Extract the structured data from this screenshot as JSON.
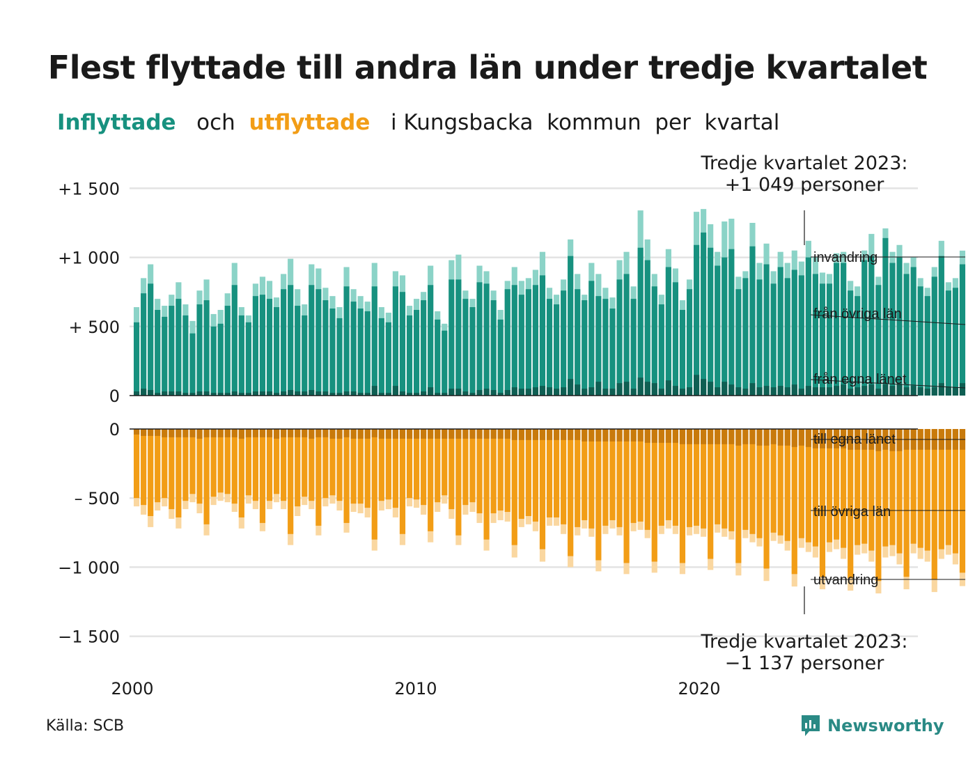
{
  "title": "Flest flyttade till andra län under tredje kvartalet",
  "subtitle": {
    "in_word": "Inflyttade",
    "mid_word": "och",
    "out_word": "utflyttade",
    "rest": "i Kungsbacka  kommun  per  kvartal"
  },
  "source": "Källa: SCB",
  "brand": "Newsworthy",
  "colors": {
    "in_main": "#17917f",
    "in_dark": "#0f5f53",
    "in_light": "#8bd3c7",
    "out_main": "#f29d16",
    "out_dark": "#c87a0c",
    "out_light": "#fad7a0",
    "grid": "#e3e3e3",
    "brand": "#2a8a85"
  },
  "chart_data": {
    "type": "bar",
    "stacked": true,
    "diverging": true,
    "x_start": "2000Q1",
    "x_end": "2023Q3",
    "x_ticks": [
      "2000",
      "2010",
      "2020"
    ],
    "top_ticks": [
      "+1 500",
      "+1 000",
      "+  500",
      "0"
    ],
    "top_tick_values": [
      1500,
      1000,
      500,
      0
    ],
    "bottom_ticks": [
      "0",
      "–  500",
      "−1 000",
      "−1 500"
    ],
    "bottom_tick_values": [
      0,
      -500,
      -1000,
      -1500
    ],
    "top_ylim": [
      0,
      1500
    ],
    "bottom_ylim": [
      -1500,
      0
    ],
    "grid": true,
    "annotation_top": [
      "Tredje kvartalet 2023:",
      "+1 049 personer"
    ],
    "annotation_bottom": [
      "Tredje kvartalet 2023:",
      "−1 137 personer"
    ],
    "in_labels": [
      "invandring",
      "från övriga län",
      "från egna länet"
    ],
    "out_labels": [
      "till egna länet",
      "till övriga län",
      "utvandring"
    ],
    "inflow_total": [
      640,
      850,
      950,
      700,
      650,
      730,
      820,
      660,
      540,
      760,
      840,
      590,
      620,
      740,
      960,
      640,
      580,
      810,
      860,
      830,
      710,
      880,
      990,
      770,
      660,
      950,
      920,
      780,
      720,
      640,
      930,
      770,
      720,
      680,
      960,
      640,
      600,
      900,
      870,
      650,
      700,
      750,
      940,
      610,
      520,
      980,
      1020,
      760,
      700,
      940,
      900,
      760,
      620,
      830,
      930,
      830,
      850,
      910,
      1040,
      780,
      730,
      840,
      1130,
      880,
      730,
      960,
      880,
      780,
      710,
      980,
      1040,
      790,
      1340,
      1130,
      880,
      730,
      1060,
      920,
      690,
      840,
      1330,
      1350,
      1240,
      1040,
      1260,
      1280,
      860,
      900,
      1250,
      960,
      1100,
      900,
      1040,
      960,
      1050,
      970,
      1120,
      1000,
      890,
      880,
      1030,
      1040,
      830,
      790,
      1050,
      1170,
      860,
      1210,
      1040,
      1090,
      960,
      1000,
      850,
      780,
      930,
      1120,
      820,
      850,
      1049
    ],
    "inflow_other_county": [
      530,
      740,
      810,
      620,
      570,
      650,
      700,
      580,
      450,
      660,
      690,
      500,
      520,
      650,
      800,
      580,
      530,
      720,
      730,
      700,
      640,
      770,
      800,
      650,
      580,
      800,
      770,
      690,
      630,
      560,
      790,
      680,
      630,
      610,
      790,
      560,
      530,
      790,
      750,
      580,
      620,
      690,
      800,
      550,
      470,
      840,
      840,
      700,
      640,
      820,
      810,
      690,
      550,
      770,
      800,
      730,
      770,
      800,
      870,
      700,
      660,
      760,
      1010,
      770,
      690,
      830,
      720,
      700,
      630,
      840,
      880,
      700,
      1070,
      980,
      790,
      660,
      930,
      820,
      620,
      770,
      1090,
      1180,
      1070,
      940,
      1000,
      1060,
      770,
      850,
      1080,
      840,
      950,
      810,
      930,
      850,
      910,
      870,
      1000,
      880,
      810,
      810,
      960,
      960,
      760,
      720,
      980,
      1010,
      800,
      1140,
      960,
      1000,
      880,
      930,
      790,
      720,
      860,
      1010,
      760,
      780,
      950
    ],
    "inflow_own_county": [
      30,
      50,
      40,
      20,
      30,
      30,
      30,
      20,
      20,
      30,
      30,
      20,
      20,
      20,
      30,
      20,
      20,
      30,
      30,
      30,
      20,
      30,
      40,
      30,
      30,
      40,
      30,
      30,
      20,
      20,
      30,
      30,
      20,
      20,
      70,
      20,
      20,
      70,
      30,
      20,
      20,
      30,
      60,
      20,
      20,
      50,
      50,
      30,
      20,
      40,
      50,
      40,
      20,
      40,
      60,
      50,
      50,
      60,
      70,
      60,
      50,
      60,
      120,
      80,
      50,
      60,
      100,
      50,
      50,
      90,
      100,
      50,
      130,
      100,
      90,
      50,
      110,
      70,
      50,
      60,
      150,
      120,
      100,
      60,
      100,
      80,
      60,
      50,
      90,
      60,
      70,
      60,
      70,
      60,
      80,
      50,
      70,
      60,
      60,
      60,
      70,
      80,
      50,
      60,
      70,
      80,
      50,
      80,
      70,
      80,
      60,
      70,
      60,
      50,
      60,
      90,
      60,
      60,
      90
    ],
    "outflow_total": [
      -560,
      -620,
      -710,
      -590,
      -560,
      -650,
      -720,
      -580,
      -530,
      -610,
      -770,
      -550,
      -520,
      -530,
      -600,
      -720,
      -540,
      -580,
      -740,
      -580,
      -530,
      -580,
      -840,
      -630,
      -550,
      -580,
      -770,
      -560,
      -540,
      -590,
      -750,
      -600,
      -610,
      -640,
      -880,
      -590,
      -580,
      -640,
      -840,
      -560,
      -570,
      -620,
      -820,
      -600,
      -540,
      -650,
      -840,
      -620,
      -600,
      -680,
      -880,
      -680,
      -660,
      -670,
      -930,
      -710,
      -690,
      -740,
      -960,
      -700,
      -700,
      -760,
      -1000,
      -770,
      -720,
      -780,
      -1030,
      -760,
      -720,
      -770,
      -1050,
      -740,
      -730,
      -790,
      -1040,
      -760,
      -720,
      -760,
      -1050,
      -770,
      -760,
      -780,
      -1020,
      -750,
      -780,
      -800,
      -1060,
      -790,
      -820,
      -850,
      -1100,
      -810,
      -830,
      -880,
      -1140,
      -860,
      -890,
      -930,
      -1160,
      -890,
      -870,
      -940,
      -1170,
      -910,
      -900,
      -960,
      -1190,
      -930,
      -920,
      -980,
      -1160,
      -900,
      -940,
      -960,
      -1180,
      -940,
      -910,
      -980,
      -1137
    ],
    "outflow_other_county": [
      -500,
      -550,
      -630,
      -530,
      -500,
      -580,
      -640,
      -520,
      -470,
      -540,
      -690,
      -490,
      -460,
      -470,
      -540,
      -640,
      -480,
      -520,
      -680,
      -520,
      -470,
      -520,
      -760,
      -560,
      -490,
      -520,
      -700,
      -500,
      -480,
      -520,
      -680,
      -540,
      -540,
      -570,
      -800,
      -520,
      -510,
      -570,
      -760,
      -500,
      -510,
      -550,
      -740,
      -530,
      -480,
      -580,
      -770,
      -550,
      -530,
      -610,
      -800,
      -610,
      -590,
      -600,
      -840,
      -650,
      -630,
      -670,
      -870,
      -640,
      -640,
      -690,
      -920,
      -710,
      -660,
      -720,
      -950,
      -700,
      -660,
      -710,
      -970,
      -680,
      -670,
      -730,
      -960,
      -700,
      -660,
      -700,
      -970,
      -710,
      -700,
      -720,
      -940,
      -690,
      -720,
      -740,
      -970,
      -730,
      -760,
      -790,
      -1010,
      -750,
      -770,
      -810,
      -1050,
      -790,
      -820,
      -850,
      -1070,
      -820,
      -800,
      -860,
      -1080,
      -840,
      -830,
      -880,
      -1100,
      -850,
      -840,
      -900,
      -1070,
      -830,
      -860,
      -880,
      -1090,
      -870,
      -840,
      -900,
      -1040
    ],
    "outflow_own_county": [
      -40,
      -50,
      -50,
      -50,
      -60,
      -60,
      -60,
      -60,
      -60,
      -70,
      -60,
      -60,
      -60,
      -60,
      -60,
      -70,
      -60,
      -60,
      -60,
      -60,
      -70,
      -60,
      -60,
      -60,
      -60,
      -70,
      -60,
      -60,
      -70,
      -70,
      -60,
      -70,
      -70,
      -70,
      -60,
      -70,
      -70,
      -70,
      -70,
      -70,
      -70,
      -70,
      -70,
      -70,
      -70,
      -70,
      -70,
      -70,
      -70,
      -70,
      -70,
      -70,
      -70,
      -70,
      -80,
      -80,
      -80,
      -80,
      -80,
      -80,
      -80,
      -80,
      -80,
      -80,
      -90,
      -90,
      -90,
      -90,
      -90,
      -90,
      -90,
      -90,
      -90,
      -100,
      -100,
      -100,
      -100,
      -100,
      -110,
      -110,
      -110,
      -110,
      -110,
      -110,
      -110,
      -110,
      -120,
      -110,
      -110,
      -120,
      -120,
      -110,
      -120,
      -120,
      -130,
      -120,
      -130,
      -140,
      -140,
      -140,
      -140,
      -140,
      -150,
      -150,
      -150,
      -150,
      -160,
      -150,
      -160,
      -160,
      -150,
      -150,
      -150,
      -150,
      -150,
      -150,
      -150,
      -150,
      -150
    ]
  }
}
